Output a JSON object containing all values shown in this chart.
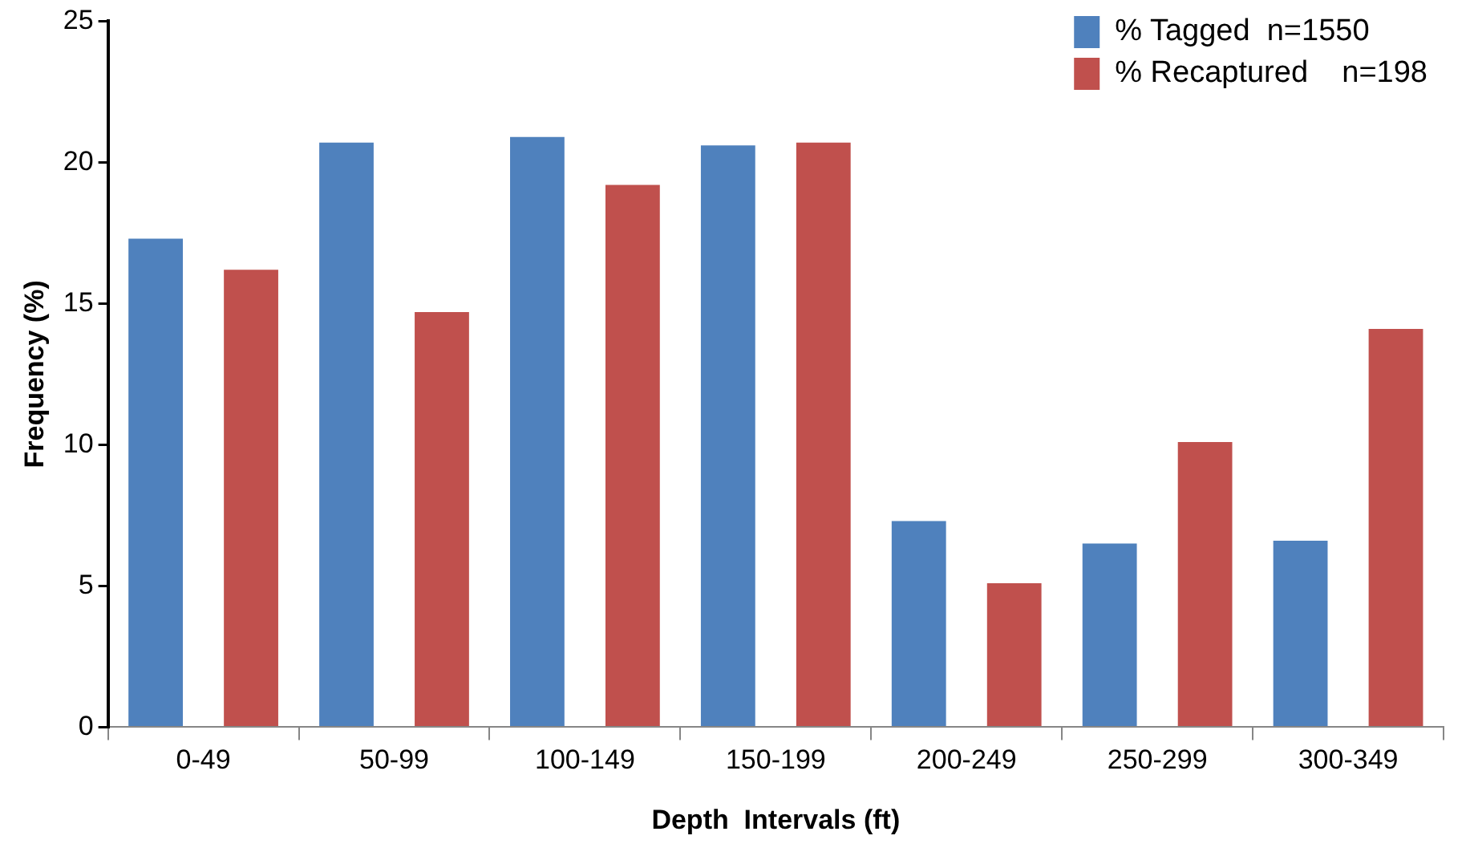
{
  "chart_data": {
    "type": "bar",
    "xlabel": "Depth  Intervals (ft)",
    "ylabel": "Frequency (%)",
    "categories": [
      "0-49",
      "50-99",
      "100-149",
      "150-199",
      "200-249",
      "250-299",
      "300-349"
    ],
    "series": [
      {
        "name": "% Tagged  n=1550",
        "color": "#4f81bd",
        "values": [
          17.3,
          20.7,
          20.9,
          20.6,
          7.3,
          6.5,
          6.6
        ]
      },
      {
        "name": "% Recaptured    n=198",
        "color": "#c0504d",
        "values": [
          16.2,
          14.7,
          19.2,
          20.7,
          5.1,
          10.1,
          14.1
        ]
      }
    ],
    "ylim": [
      0,
      25
    ],
    "yticks": [
      0,
      5,
      10,
      15,
      20,
      25
    ],
    "grid": false,
    "legend": "top right"
  }
}
